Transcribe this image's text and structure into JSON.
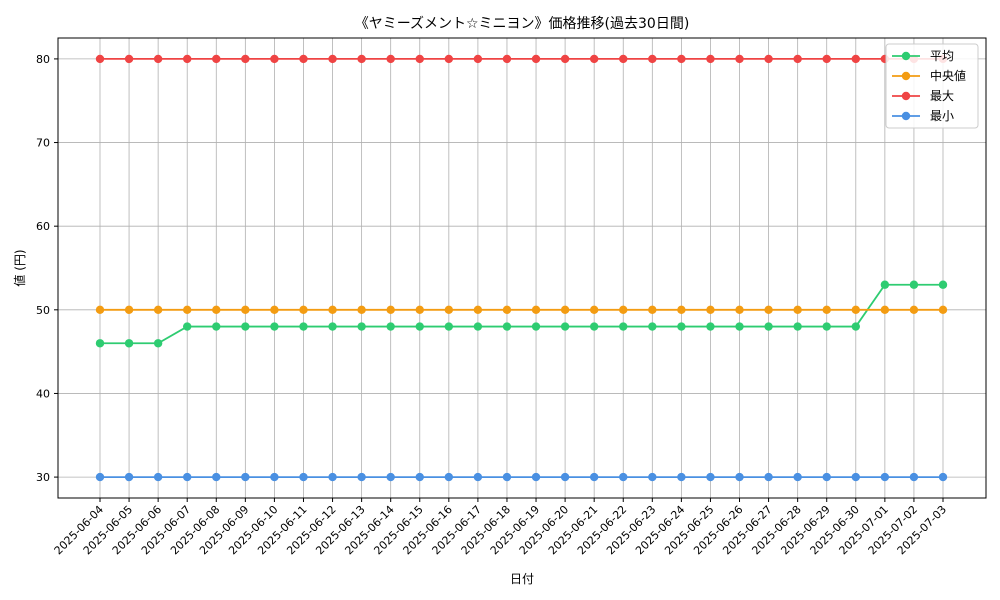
{
  "chart_data": {
    "type": "line",
    "title": "《ヤミーズメント☆ミニヨン》価格推移(過去30日間)",
    "xlabel": "日付",
    "ylabel": "値 (円)",
    "ylim": [
      27.5,
      82.5
    ],
    "yticks": [
      30,
      40,
      50,
      60,
      70,
      80
    ],
    "grid": true,
    "legend_position": "top-right",
    "categories": [
      "2025-06-04",
      "2025-06-05",
      "2025-06-06",
      "2025-06-07",
      "2025-06-08",
      "2025-06-09",
      "2025-06-10",
      "2025-06-11",
      "2025-06-12",
      "2025-06-13",
      "2025-06-14",
      "2025-06-15",
      "2025-06-16",
      "2025-06-17",
      "2025-06-18",
      "2025-06-19",
      "2025-06-20",
      "2025-06-21",
      "2025-06-22",
      "2025-06-23",
      "2025-06-24",
      "2025-06-25",
      "2025-06-26",
      "2025-06-27",
      "2025-06-28",
      "2025-06-29",
      "2025-06-30",
      "2025-07-01",
      "2025-07-02",
      "2025-07-03"
    ],
    "series": [
      {
        "name": "平均",
        "color": "#2ecc71",
        "values": [
          46,
          46,
          46,
          48,
          48,
          48,
          48,
          48,
          48,
          48,
          48,
          48,
          48,
          48,
          48,
          48,
          48,
          48,
          48,
          48,
          48,
          48,
          48,
          48,
          48,
          48,
          48,
          53,
          53,
          53
        ]
      },
      {
        "name": "中央値",
        "color": "#f39c12",
        "values": [
          50,
          50,
          50,
          50,
          50,
          50,
          50,
          50,
          50,
          50,
          50,
          50,
          50,
          50,
          50,
          50,
          50,
          50,
          50,
          50,
          50,
          50,
          50,
          50,
          50,
          50,
          50,
          50,
          50,
          50
        ]
      },
      {
        "name": "最大",
        "color": "#ef4444",
        "values": [
          80,
          80,
          80,
          80,
          80,
          80,
          80,
          80,
          80,
          80,
          80,
          80,
          80,
          80,
          80,
          80,
          80,
          80,
          80,
          80,
          80,
          80,
          80,
          80,
          80,
          80,
          80,
          80,
          80,
          80
        ]
      },
      {
        "name": "最小",
        "color": "#4a90e2",
        "values": [
          30,
          30,
          30,
          30,
          30,
          30,
          30,
          30,
          30,
          30,
          30,
          30,
          30,
          30,
          30,
          30,
          30,
          30,
          30,
          30,
          30,
          30,
          30,
          30,
          30,
          30,
          30,
          30,
          30,
          30
        ]
      }
    ]
  }
}
